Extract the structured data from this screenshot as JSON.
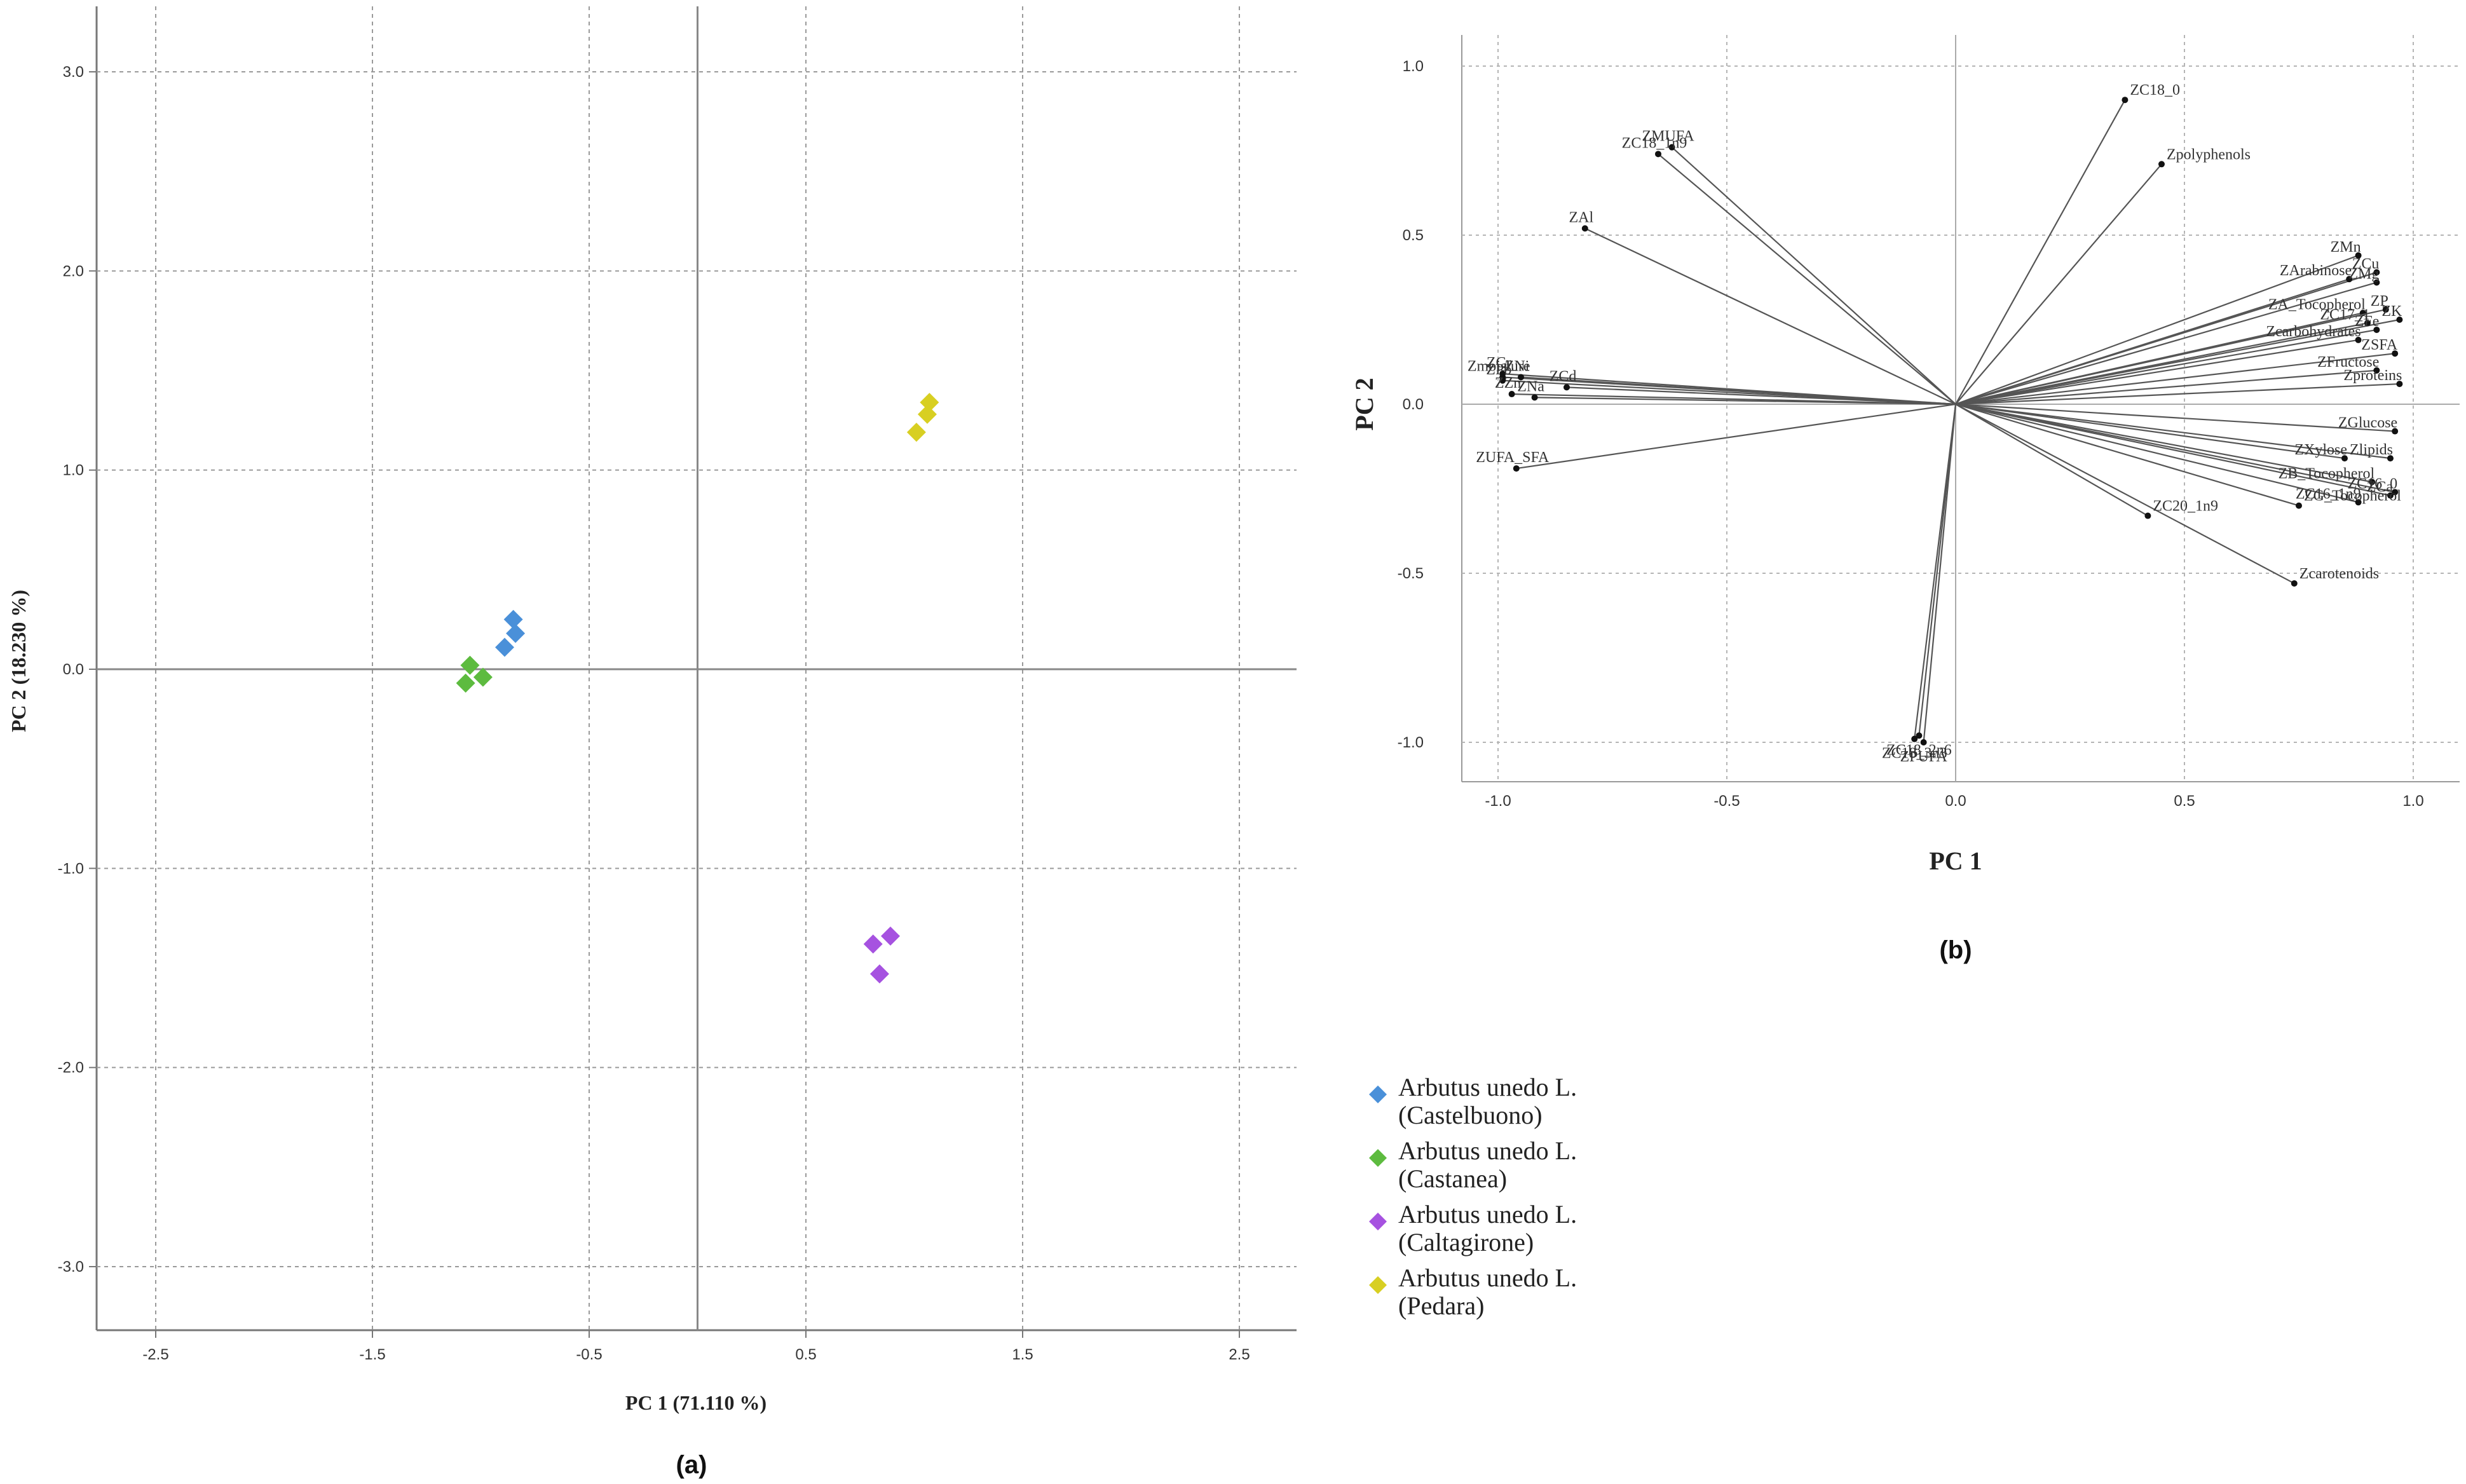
{
  "chart_data": [
    {
      "type": "scatter",
      "panel_label": "(a)",
      "xlabel": "PC 1 (71.110 %)",
      "ylabel": "PC 2 (18.230 %)",
      "xlim": [
        -2.75,
        2.85
      ],
      "ylim": [
        -3.33,
        3.33
      ],
      "x_ticks": [
        -2.5,
        -1.5,
        -0.5,
        0.5,
        1.5,
        2.5
      ],
      "x_tick_labels": [
        "-2.5",
        "-1.5",
        "-0.5",
        "0.5",
        "1.5",
        "2.5"
      ],
      "y_ticks": [
        3.0,
        2.0,
        1.0,
        0.0,
        -1.0,
        -2.0,
        -3.0
      ],
      "y_tick_labels": [
        "3.0",
        "2.0",
        "1.0",
        "0.0",
        "-1.0",
        "-2.0",
        "-3.0"
      ],
      "grid": true,
      "legend_position": "bottom-right",
      "series": [
        {
          "name": "Arbutus unedo L. (Castelbuono)",
          "legend_line1": "Arbutus unedo L.",
          "legend_line2": "(Castelbuono)",
          "color": "#4a90d9",
          "points": [
            [
              -0.85,
              0.25
            ],
            [
              -0.84,
              0.18
            ],
            [
              -0.89,
              0.11
            ]
          ]
        },
        {
          "name": "Arbutus unedo L. (Castanea)",
          "legend_line1": "Arbutus unedo L.",
          "legend_line2": "(Castanea)",
          "color": "#5dbb3f",
          "points": [
            [
              -1.05,
              0.02
            ],
            [
              -0.99,
              -0.04
            ],
            [
              -1.07,
              -0.07
            ]
          ]
        },
        {
          "name": "Arbutus unedo L. (Caltagirone)",
          "legend_line1": "Arbutus unedo L.",
          "legend_line2": "(Caltagirone)",
          "color": "#a652e0",
          "points": [
            [
              0.81,
              -1.38
            ],
            [
              0.89,
              -1.34
            ],
            [
              0.84,
              -1.53
            ]
          ]
        },
        {
          "name": "Arbutus unedo L. (Pedara)",
          "legend_line1": "Arbutus unedo L.",
          "legend_line2": "(Pedara)",
          "color": "#d8cf22",
          "points": [
            [
              1.07,
              1.34
            ],
            [
              1.06,
              1.28
            ],
            [
              1.01,
              1.19
            ]
          ]
        }
      ]
    },
    {
      "type": "biplot",
      "panel_label": "(b)",
      "xlabel": "PC 1",
      "ylabel": "PC 2",
      "xlim": [
        -1.1,
        1.1
      ],
      "ylim": [
        -1.12,
        1.12
      ],
      "x_ticks": [
        -1.0,
        -0.5,
        0.0,
        0.5,
        1.0
      ],
      "x_tick_labels": [
        "-1.0",
        "-0.5",
        "0.0",
        "0.5",
        "1.0"
      ],
      "y_ticks": [
        1.0,
        0.5,
        0.0,
        -0.5,
        -1.0
      ],
      "y_tick_labels": [
        "1.0",
        "0.5",
        "0.0",
        "-0.5",
        "-1.0"
      ],
      "grid": true,
      "vectors": [
        {
          "label": "ZC18_0",
          "x": 0.37,
          "y": 0.9
        },
        {
          "label": "Zpolyphenols",
          "x": 0.45,
          "y": 0.71
        },
        {
          "label": "ZMUFA",
          "x": -0.62,
          "y": 0.76
        },
        {
          "label": "ZC18_1n9",
          "x": -0.65,
          "y": 0.74
        },
        {
          "label": "ZAl",
          "x": -0.81,
          "y": 0.52
        },
        {
          "label": "ZMn",
          "x": 0.88,
          "y": 0.44
        },
        {
          "label": "ZCu",
          "x": 0.92,
          "y": 0.39
        },
        {
          "label": "ZArabinose",
          "x": 0.86,
          "y": 0.37
        },
        {
          "label": "ZMg",
          "x": 0.92,
          "y": 0.36
        },
        {
          "label": "ZA_Tocopherol",
          "x": 0.89,
          "y": 0.27
        },
        {
          "label": "ZP",
          "x": 0.94,
          "y": 0.28
        },
        {
          "label": "ZK",
          "x": 0.97,
          "y": 0.25
        },
        {
          "label": "ZC17_1",
          "x": 0.9,
          "y": 0.24
        },
        {
          "label": "ZFe",
          "x": 0.92,
          "y": 0.22
        },
        {
          "label": "Zcarbohydrates",
          "x": 0.88,
          "y": 0.19
        },
        {
          "label": "ZSFA",
          "x": 0.96,
          "y": 0.15
        },
        {
          "label": "ZFructose",
          "x": 0.92,
          "y": 0.1
        },
        {
          "label": "Zproteins",
          "x": 0.97,
          "y": 0.06
        },
        {
          "label": "ZGlucose",
          "x": 0.96,
          "y": -0.08
        },
        {
          "label": "ZXylose",
          "x": 0.85,
          "y": -0.16
        },
        {
          "label": "Zlipids",
          "x": 0.95,
          "y": -0.16
        },
        {
          "label": "ZB_Tocopherol",
          "x": 0.91,
          "y": -0.23
        },
        {
          "label": "ZCa",
          "x": 0.95,
          "y": -0.27
        },
        {
          "label": "ZC16_1n9",
          "x": 0.88,
          "y": -0.29
        },
        {
          "label": "ZG_Tocopherol",
          "x": 0.75,
          "y": -0.3
        },
        {
          "label": "ZC16_0",
          "x": 0.96,
          "y": -0.26
        },
        {
          "label": "ZC20_1n9",
          "x": 0.42,
          "y": -0.33
        },
        {
          "label": "Zcarotenoids",
          "x": 0.74,
          "y": -0.53
        },
        {
          "label": "ZC18_2n6",
          "x": -0.08,
          "y": -0.98
        },
        {
          "label": "ZC18_3n3",
          "x": -0.09,
          "y": -0.99
        },
        {
          "label": "ZPUFA",
          "x": -0.07,
          "y": -1.0
        },
        {
          "label": "Zmoisture",
          "x": -0.99,
          "y": 0.08
        },
        {
          "label": "ZCr",
          "x": -0.99,
          "y": 0.09
        },
        {
          "label": "ZPb",
          "x": -0.99,
          "y": 0.07
        },
        {
          "label": "ZNi",
          "x": -0.95,
          "y": 0.08
        },
        {
          "label": "ZZn",
          "x": -0.97,
          "y": 0.03
        },
        {
          "label": "ZNa",
          "x": -0.92,
          "y": 0.02
        },
        {
          "label": "ZCd",
          "x": -0.85,
          "y": 0.05
        },
        {
          "label": "ZUFA_SFA",
          "x": -0.96,
          "y": -0.19
        }
      ]
    }
  ]
}
